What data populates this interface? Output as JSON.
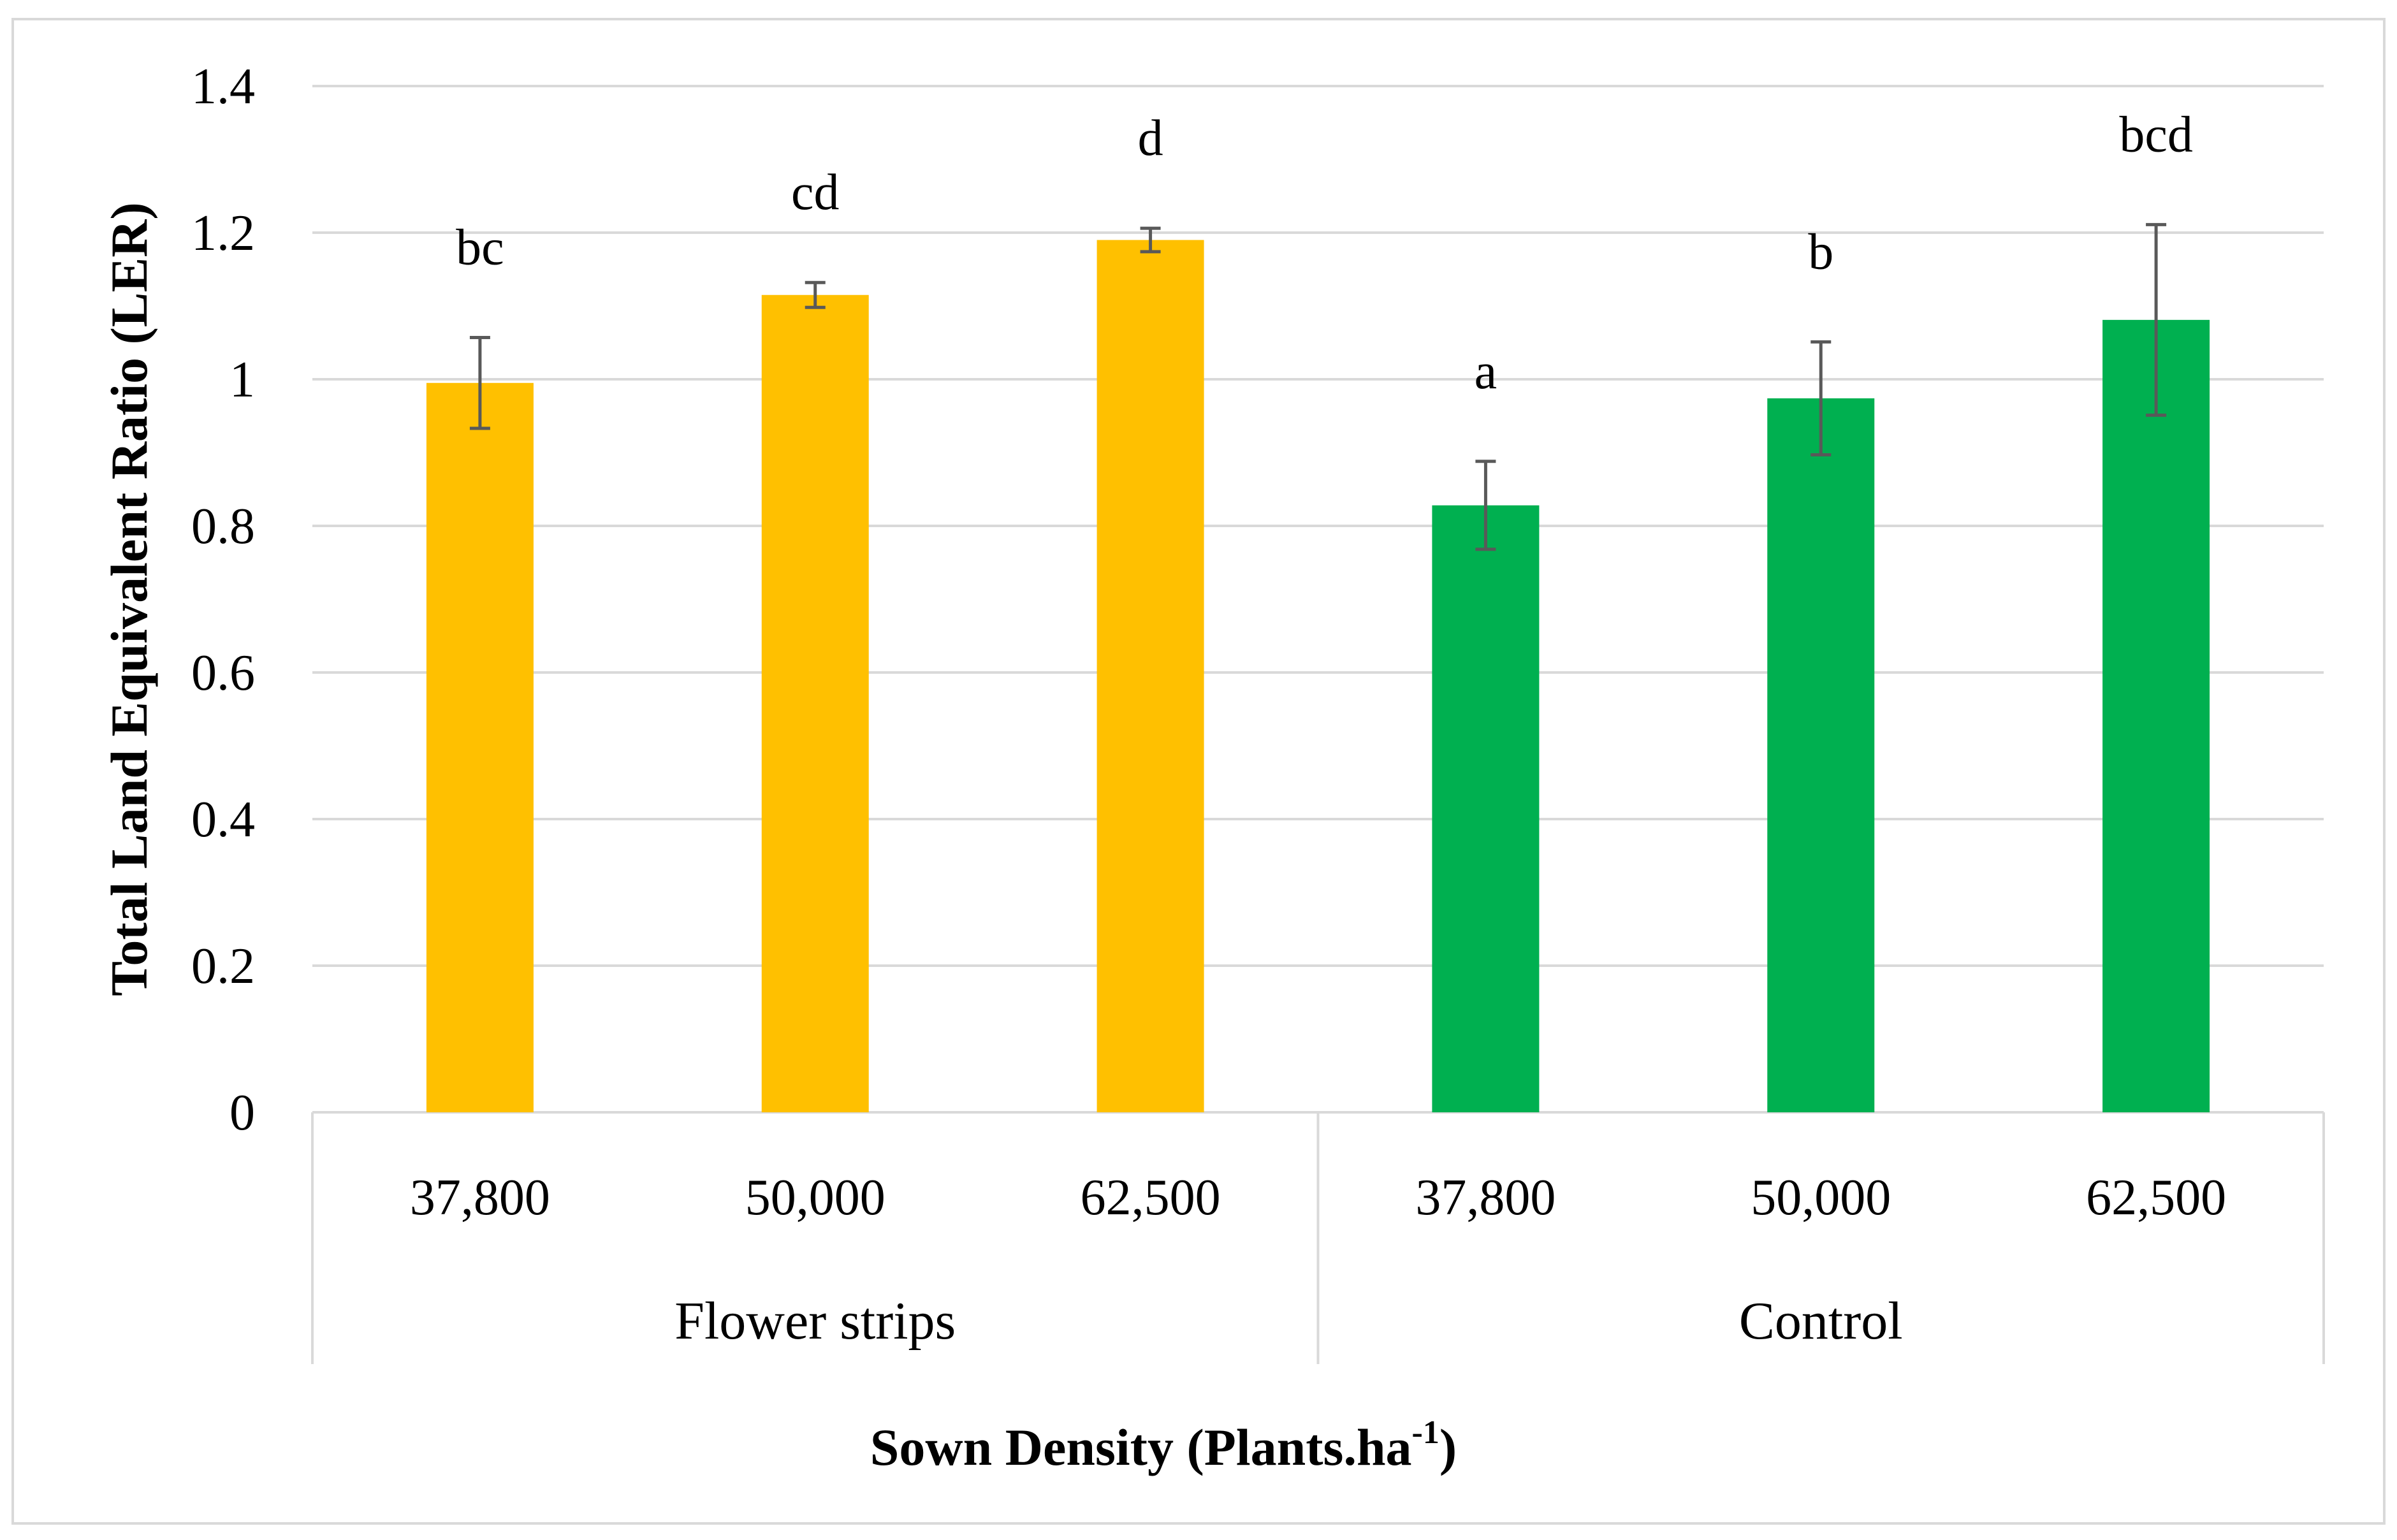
{
  "chart_data": {
    "type": "bar",
    "title": "",
    "ylabel": "Total Land Equivalent Ratio (LER)",
    "xlabel_main": "Sown Density (Plants.ha",
    "xlabel_sup": "-1",
    "xlabel_close": ")",
    "ylim": [
      0,
      1.4
    ],
    "yticks": [
      "0",
      "0.2",
      "0.4",
      "0.6",
      "0.8",
      "1",
      "1.2",
      "1.4"
    ],
    "ytick_values": [
      0,
      0.2,
      0.4,
      0.6,
      0.8,
      1.0,
      1.2,
      1.4
    ],
    "grid": true,
    "groups": [
      {
        "name": "Flower strips",
        "color": "#FFC000",
        "bars": [
          {
            "category": "37,800",
            "value": 0.995,
            "error": 0.062,
            "letter": "bc"
          },
          {
            "category": "50,000",
            "value": 1.115,
            "error": 0.017,
            "letter": "cd"
          },
          {
            "category": "62,500",
            "value": 1.19,
            "error": 0.016,
            "letter": "d"
          }
        ]
      },
      {
        "name": "Control",
        "color": "#00B050",
        "bars": [
          {
            "category": "37,800",
            "value": 0.828,
            "error": 0.06,
            "letter": "a"
          },
          {
            "category": "50,000",
            "value": 0.974,
            "error": 0.077,
            "letter": "b"
          },
          {
            "category": "62,500",
            "value": 1.081,
            "error": 0.13,
            "letter": "bcd"
          }
        ]
      }
    ]
  },
  "colors": {
    "gridline": "#D9D9D9",
    "error_bar": "#595959",
    "frame": "#D9D9D9"
  }
}
